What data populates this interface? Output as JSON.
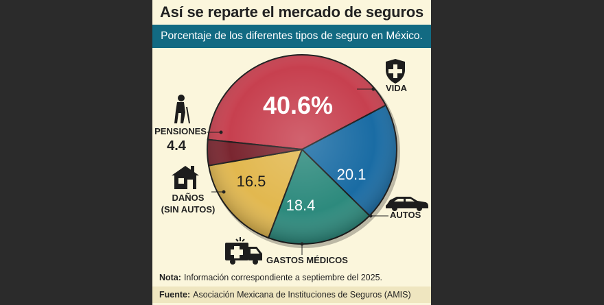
{
  "title": "Así se reparte el mercado de seguros",
  "subtitle": "Porcentaje de los diferentes tipos de seguro en México.",
  "note": {
    "label": "Nota:",
    "text": "Información correspondiente a septiembre del 2025."
  },
  "source": {
    "label": "Fuente:",
    "text": "Asociación Mexicana de Instituciones de Seguros (AMIS)"
  },
  "labels": {
    "vida": "VIDA",
    "autos": "AUTOS",
    "gastos": "GASTOS MÉDICOS",
    "danos_line1": "DAÑOS",
    "danos_line2": "(SIN AUTOS)",
    "pensiones": "PENSIONES"
  },
  "chart_data": {
    "type": "pie",
    "title": "Así se reparte el mercado de seguros",
    "subtitle": "Porcentaje de los diferentes tipos de seguro en México.",
    "slices": [
      {
        "label": "VIDA",
        "value": 40.6,
        "display": "40.6%",
        "color": "#c7404f"
      },
      {
        "label": "AUTOS",
        "value": 20.1,
        "display": "20.1",
        "color": "#1a6ca4"
      },
      {
        "label": "GASTOS MÉDICOS",
        "value": 18.4,
        "display": "18.4",
        "color": "#2d8a7d"
      },
      {
        "label": "DAÑOS (SIN AUTOS)",
        "value": 16.5,
        "display": "16.5",
        "color": "#e2b84f"
      },
      {
        "label": "PENSIONES",
        "value": 4.4,
        "display": "4.4",
        "color": "#7a2630"
      }
    ],
    "accent": "#126a82"
  }
}
